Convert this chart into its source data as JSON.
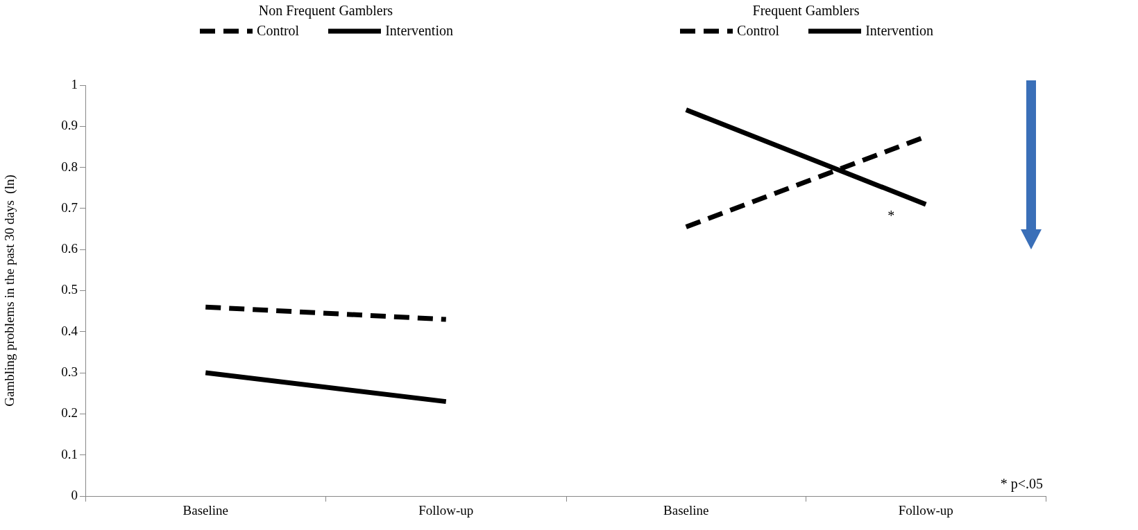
{
  "chart_data": [
    {
      "type": "line",
      "title": "Non Frequent Gamblers",
      "categories": [
        "Baseline",
        "Follow-up"
      ],
      "ylabel": "Gambling problems in the past 30 days  (ln)",
      "ylim": [
        0,
        1
      ],
      "yticks": [
        0,
        0.1,
        0.2,
        0.3,
        0.4,
        0.5,
        0.6,
        0.7,
        0.8,
        0.9,
        1
      ],
      "grid": false,
      "legend": "top",
      "marker": "none",
      "series": [
        {
          "name": "Control",
          "color": "#000000",
          "line_style": "dashed",
          "values": [
            0.46,
            0.43
          ]
        },
        {
          "name": "Intervention",
          "color": "#000000",
          "line_style": "solid",
          "values": [
            0.3,
            0.23
          ]
        }
      ]
    },
    {
      "type": "line",
      "title": "Frequent Gamblers",
      "categories": [
        "Baseline",
        "Follow-up"
      ],
      "ylim": [
        0,
        1
      ],
      "tick_labels": "x",
      "grid": false,
      "legend": "top",
      "marker": "none",
      "annotations": [
        "*",
        "* p<.05"
      ],
      "series": [
        {
          "name": "Control",
          "color": "#000000",
          "line_style": "dashed",
          "values": [
            0.655,
            0.875
          ]
        },
        {
          "name": "Intervention",
          "color": "#000000",
          "line_style": "solid",
          "values": [
            0.94,
            0.71
          ]
        }
      ]
    }
  ]
}
